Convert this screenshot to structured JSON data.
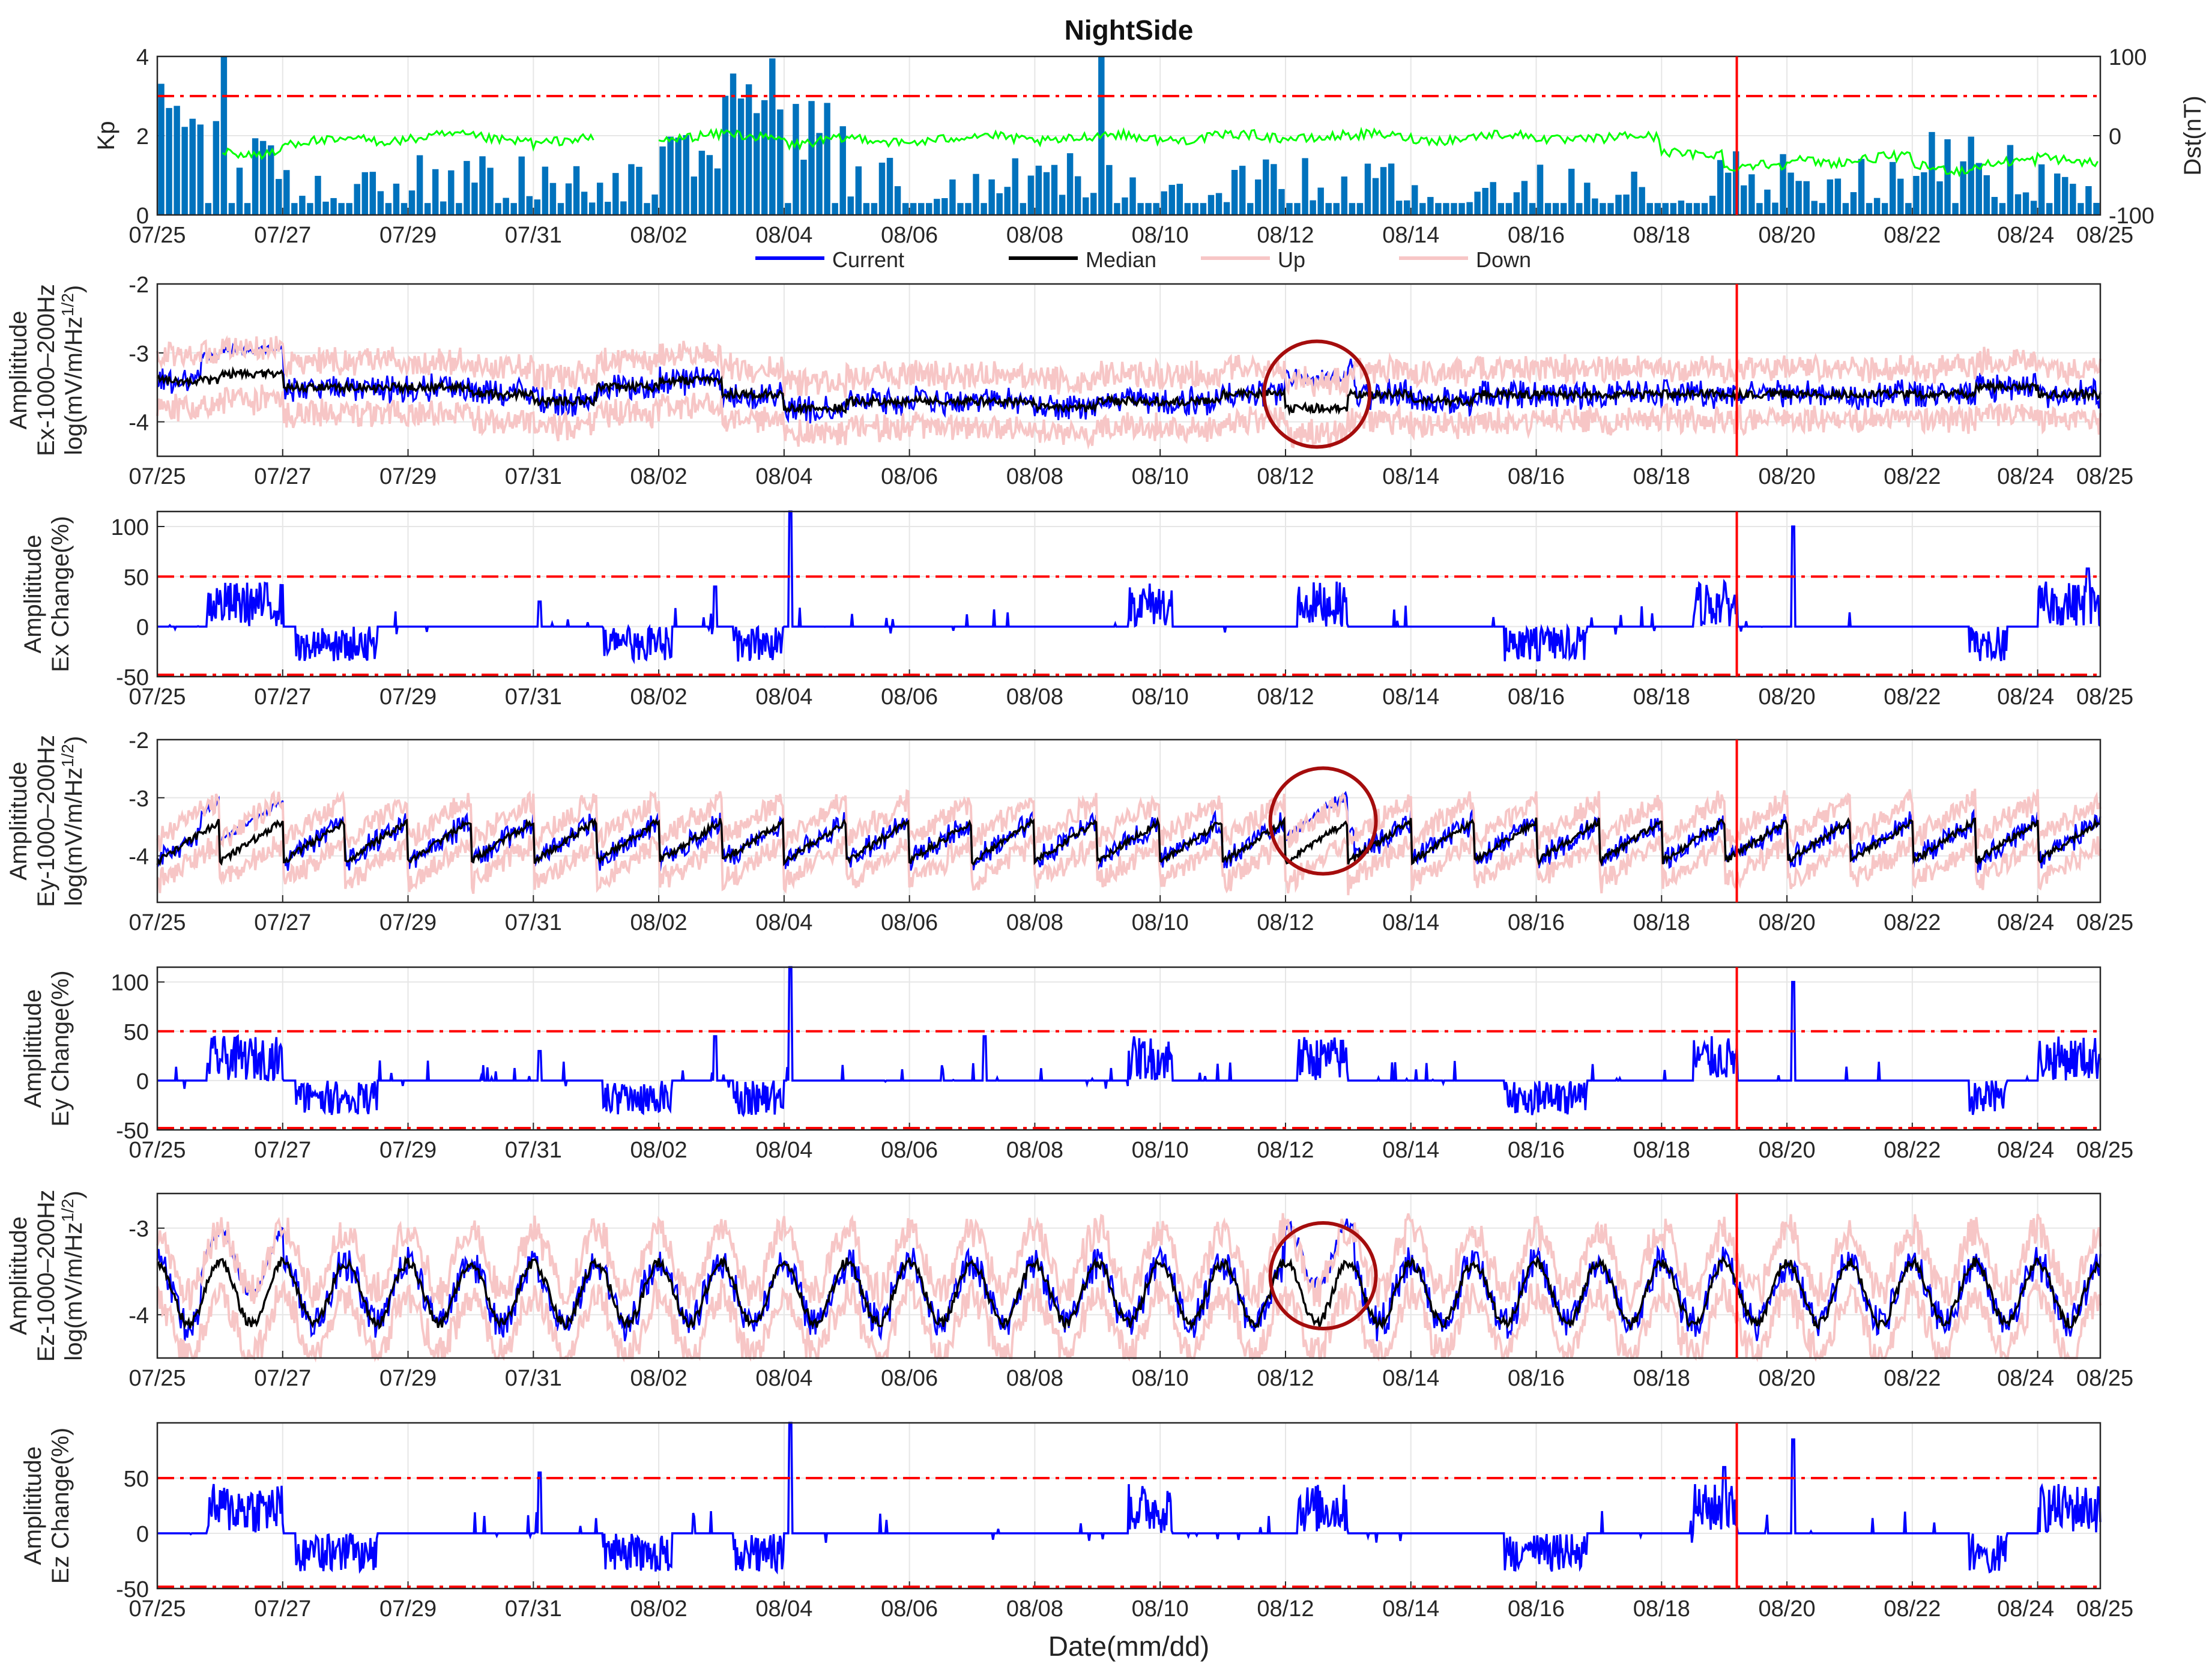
{
  "title": "NightSide",
  "xlabel": "Date(mm/dd)",
  "colors": {
    "current": "#0000ff",
    "median": "#000000",
    "band": "#f7c6c6",
    "kp_bar": "#0072bd",
    "dst": "#00ff00",
    "threshold": "#ff0000",
    "event_line": "#ff0000",
    "highlight_circle": "#a50d0d",
    "grid": "#e6e6e6",
    "axis": "#262626"
  },
  "legend": {
    "entries": [
      {
        "label": "Current",
        "color": "#0000ff"
      },
      {
        "label": "Median",
        "color": "#000000"
      },
      {
        "label": "Up",
        "color": "#f7c6c6"
      },
      {
        "label": "Down",
        "color": "#f7c6c6"
      }
    ]
  },
  "chart_data": [
    {
      "type": "bar",
      "name": "kp_dst",
      "x_ticks": [
        "07/25",
        "07/27",
        "07/29",
        "07/31",
        "08/02",
        "08/04",
        "08/06",
        "08/08",
        "08/10",
        "08/12",
        "08/14",
        "08/16",
        "08/18",
        "08/20",
        "08/22",
        "08/24",
        "08/25"
      ],
      "x_range_days": [
        0,
        31
      ],
      "ylabel": "Kp",
      "ylim": [
        0,
        4
      ],
      "yticks": [
        "0",
        "2",
        "4"
      ],
      "y2label": "Dst(nT)",
      "y2lim": [
        -100,
        100
      ],
      "y2ticks": [
        "-100",
        "0",
        "100"
      ],
      "threshold": 3,
      "event_day": 25.2,
      "kp_daily_mean": [
        2.6,
        1.2,
        0.6,
        0.9,
        1.0,
        0.7,
        0.6,
        0.8,
        0.9,
        2.4,
        1.6,
        0.9,
        0.6,
        0.7,
        0.9,
        0.6,
        0.7,
        0.9,
        0.8,
        0.7,
        0.6,
        0.7,
        0.5,
        0.8,
        1.0,
        1.0,
        0.5,
        0.8,
        1.3,
        1.0,
        0.7
      ],
      "dst_daily_mean": [
        null,
        -20,
        -10,
        -3,
        -3,
        -3,
        -8,
        null,
        -3,
        0,
        -8,
        -6,
        -4,
        -3,
        -3,
        -2,
        -2,
        -2,
        0,
        -2,
        -2,
        -2,
        -2,
        -4,
        -20,
        -40,
        -30,
        -30,
        -40,
        -35,
        -30
      ]
    },
    {
      "type": "line",
      "name": "ex_amplitude",
      "ylabel_lines": [
        "Amplititude",
        "Ex-1000",
        "200Hz",
        "log(mV/m/Hz",
        "1/2",
        ")"
      ],
      "ylim": [
        -4.5,
        -2
      ],
      "yticks": [
        "-2",
        "-3",
        "-4"
      ],
      "median_daily": [
        -3.4,
        -3.3,
        -3.5,
        -3.5,
        -3.5,
        -3.6,
        -3.7,
        -3.5,
        -3.4,
        -3.6,
        -3.8,
        -3.7,
        -3.7,
        -3.7,
        -3.8,
        -3.7,
        -3.7,
        -3.6,
        -3.8,
        -3.6,
        -3.7,
        -3.6,
        -3.6,
        -3.6,
        -3.6,
        -3.6,
        -3.6,
        -3.6,
        -3.6,
        -3.5,
        -3.6
      ],
      "highlight_day": 18.5
    },
    {
      "type": "line",
      "name": "ex_change",
      "ylabel_lines": [
        "Amplititude",
        "Ex Change(%)"
      ],
      "ylim": [
        -50,
        115
      ],
      "yticks": [
        "-50",
        "0",
        "50",
        "100"
      ],
      "threshold_upper": 50,
      "threshold_lower": -50,
      "spikes": [
        {
          "day": 10.1,
          "value": 115
        },
        {
          "day": 26.1,
          "value": 100
        },
        {
          "day": 6.1,
          "value": 25
        },
        {
          "day": 8.9,
          "value": 40
        },
        {
          "day": 30.8,
          "value": 58
        }
      ]
    },
    {
      "type": "line",
      "name": "ey_amplitude",
      "ylabel_lines": [
        "Amplititude",
        "Ey-1000",
        "200Hz",
        "log(mV/m/Hz",
        "1/2",
        ")"
      ],
      "ylim": [
        -4.8,
        -2
      ],
      "yticks": [
        "-2",
        "-3",
        "-4"
      ],
      "highlight_day": 18.6
    },
    {
      "type": "line",
      "name": "ey_change",
      "ylabel_lines": [
        "Amplititude",
        "Ey Change(%)"
      ],
      "ylim": [
        -50,
        115
      ],
      "yticks": [
        "-50",
        "0",
        "50",
        "100"
      ],
      "threshold_upper": 50,
      "threshold_lower": -50,
      "spikes": [
        {
          "day": 10.1,
          "value": 115
        },
        {
          "day": 26.1,
          "value": 100
        },
        {
          "day": 6.1,
          "value": 30
        },
        {
          "day": 8.9,
          "value": 45
        },
        {
          "day": 13.2,
          "value": 45
        }
      ]
    },
    {
      "type": "line",
      "name": "ez_amplitude",
      "ylabel_lines": [
        "Amplititude",
        "Ez-1000",
        "200Hz",
        "log(mV/m/Hz",
        "1/2",
        ")"
      ],
      "ylim": [
        -4.5,
        -2.6
      ],
      "yticks": [
        "-3",
        "-4"
      ],
      "highlight_day": 18.6
    },
    {
      "type": "line",
      "name": "ez_change",
      "ylabel_lines": [
        "Amplititude",
        "Ez Change(%)"
      ],
      "ylim": [
        -50,
        100
      ],
      "yticks": [
        "-50",
        "0",
        "50"
      ],
      "threshold_upper": 50,
      "threshold_lower": -50,
      "spikes": [
        {
          "day": 10.1,
          "value": 100
        },
        {
          "day": 26.1,
          "value": 85
        },
        {
          "day": 6.1,
          "value": 55
        },
        {
          "day": 25.0,
          "value": 60
        }
      ]
    }
  ]
}
